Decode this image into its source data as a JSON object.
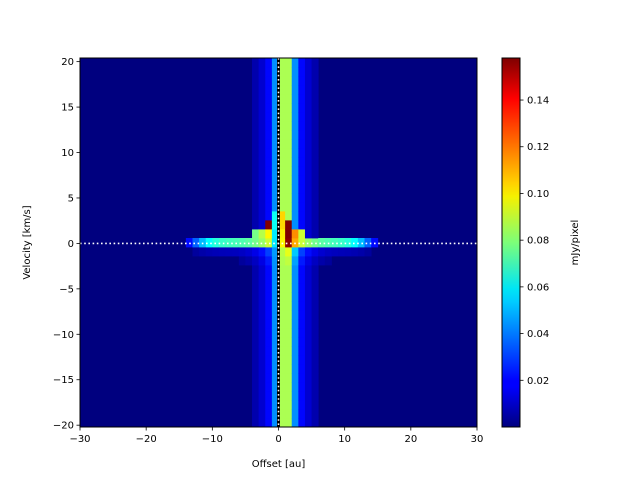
{
  "chart_data": {
    "type": "heatmap",
    "title": "",
    "xlabel": "Offset [au]",
    "ylabel": "Velocity [km/s]",
    "xlim": [
      -30,
      30
    ],
    "ylim": [
      -20.2,
      20.4
    ],
    "xticks": [
      -30,
      -20,
      -10,
      0,
      10,
      20,
      30
    ],
    "yticks": [
      -20,
      -15,
      -10,
      -5,
      0,
      5,
      10,
      15,
      20
    ],
    "colormap": "jet",
    "colorbar": {
      "label": "mJy/pixel",
      "range": [
        0.0,
        0.158
      ],
      "ticks": [
        0.02,
        0.04,
        0.06,
        0.08,
        0.1,
        0.12,
        0.14
      ],
      "tick_labels": [
        "0.02",
        "0.04",
        "0.06",
        "0.08",
        "0.10",
        "0.12",
        "0.14"
      ]
    },
    "features": {
      "continuum_peak_x": 1.0,
      "line_emission_velocity_range": [
        -2,
        4
      ],
      "line_emission_offset_extent": [
        -14,
        15
      ],
      "peak_value": 0.158
    },
    "reference_lines": [
      {
        "orientation": "vertical",
        "value": 0,
        "style": "dotted",
        "color": "#ffffff"
      },
      {
        "orientation": "horizontal",
        "value": 0,
        "style": "dotted",
        "color": "#ffffff"
      }
    ],
    "background_color": "#00007f"
  }
}
